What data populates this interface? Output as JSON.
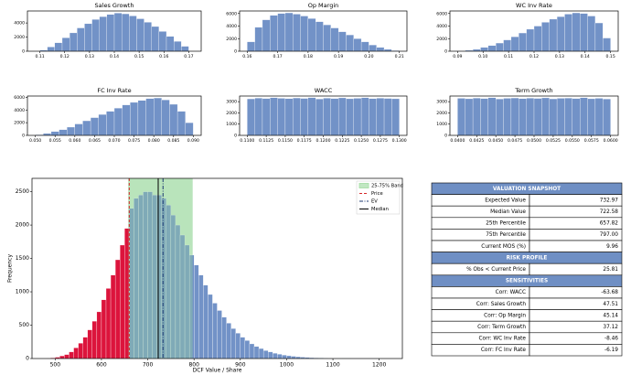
{
  "chart_data": [
    {
      "type": "histogram",
      "title": "Sales Growth",
      "color": "#7292c7",
      "bins": [
        0.11,
        0.113,
        0.116,
        0.119,
        0.122,
        0.125,
        0.128,
        0.131,
        0.134,
        0.137,
        0.14,
        0.143,
        0.146,
        0.149,
        0.152,
        0.155,
        0.158,
        0.161,
        0.164,
        0.167,
        0.17
      ],
      "values": [
        150,
        600,
        1200,
        1900,
        2600,
        3300,
        3900,
        4500,
        4900,
        5200,
        5400,
        5300,
        5000,
        4600,
        4100,
        3500,
        2800,
        2100,
        1400,
        700
      ],
      "xlim": [
        0.105,
        0.175
      ],
      "xticks": [
        0.11,
        0.12,
        0.13,
        0.14,
        0.15,
        0.16,
        0.17
      ],
      "ylim": [
        0,
        5700
      ],
      "yticks": [
        0,
        2000,
        4000
      ]
    },
    {
      "type": "histogram",
      "title": "Op Margin",
      "color": "#7292c7",
      "bins": [
        0.16,
        0.1625,
        0.165,
        0.1675,
        0.17,
        0.1725,
        0.175,
        0.1775,
        0.18,
        0.1825,
        0.185,
        0.1875,
        0.19,
        0.1925,
        0.195,
        0.1975,
        0.2,
        0.2025,
        0.205,
        0.2075,
        0.21
      ],
      "values": [
        1500,
        3800,
        5000,
        5700,
        6000,
        6100,
        5900,
        5600,
        5200,
        4700,
        4200,
        3700,
        3100,
        2600,
        2000,
        1500,
        1000,
        600,
        300,
        100
      ],
      "xlim": [
        0.1575,
        0.2125
      ],
      "xticks": [
        0.16,
        0.17,
        0.18,
        0.19,
        {
          "value": 0.2,
          "label": "0.20"
        },
        0.21
      ],
      "ylim": [
        0,
        6400
      ],
      "yticks": [
        0,
        2000,
        4000,
        6000
      ]
    },
    {
      "type": "histogram",
      "title": "WC Inv Rate",
      "color": "#7292c7",
      "bins": [
        0.09,
        0.093,
        0.096,
        0.099,
        0.102,
        0.105,
        0.108,
        0.111,
        0.114,
        0.117,
        0.12,
        0.123,
        0.126,
        0.129,
        0.132,
        0.135,
        0.138,
        0.141,
        0.144,
        0.147,
        0.15
      ],
      "values": [
        50,
        150,
        300,
        600,
        900,
        1300,
        1800,
        2300,
        2900,
        3500,
        4000,
        4600,
        5100,
        5500,
        5900,
        6100,
        6000,
        5600,
        4500,
        2100
      ],
      "xlim": [
        0.087,
        0.153
      ],
      "xticks": [
        0.09,
        {
          "value": 0.1,
          "label": "0.10"
        },
        0.11,
        0.12,
        0.13,
        0.14,
        0.15
      ],
      "ylim": [
        0,
        6400
      ],
      "yticks": [
        0,
        2000,
        4000,
        6000
      ]
    },
    {
      "type": "histogram",
      "title": "FC Inv Rate",
      "color": "#7292c7",
      "bins": [
        0.05,
        0.052,
        0.054,
        0.056,
        0.058,
        0.06,
        0.062,
        0.064,
        0.066,
        0.068,
        0.07,
        0.072,
        0.074,
        0.076,
        0.078,
        0.08,
        0.082,
        0.084,
        0.086,
        0.088,
        0.09
      ],
      "values": [
        100,
        300,
        600,
        900,
        1300,
        1800,
        2300,
        2800,
        3300,
        3800,
        4300,
        4800,
        5200,
        5500,
        5800,
        5900,
        5600,
        4900,
        3800,
        2000
      ],
      "xlim": [
        0.048,
        0.092
      ],
      "xticks": [
        {
          "value": 0.05,
          "label": "0.050"
        },
        0.055,
        {
          "value": 0.06,
          "label": "0.060"
        },
        0.065,
        {
          "value": 0.07,
          "label": "0.070"
        },
        0.075,
        {
          "value": 0.08,
          "label": "0.080"
        },
        0.085,
        {
          "value": 0.09,
          "label": "0.090"
        }
      ],
      "ylim": [
        0,
        6200
      ],
      "yticks": [
        0,
        2000,
        4000,
        6000
      ]
    },
    {
      "type": "histogram",
      "title": "WACC",
      "color": "#7292c7",
      "bins": [
        0.11,
        0.111,
        0.112,
        0.113,
        0.114,
        0.115,
        0.116,
        0.117,
        0.118,
        0.119,
        0.12,
        0.121,
        0.122,
        0.123,
        0.124,
        0.125,
        0.126,
        0.127,
        0.128,
        0.129,
        0.13
      ],
      "values": [
        3250,
        3320,
        3280,
        3350,
        3300,
        3270,
        3330,
        3290,
        3360,
        3240,
        3310,
        3280,
        3340,
        3260,
        3300,
        3350,
        3270,
        3310,
        3290,
        3260
      ],
      "xlim": [
        0.109,
        0.131
      ],
      "xticks": [
        {
          "value": 0.11,
          "label": "0.1100"
        },
        0.1125,
        {
          "value": 0.115,
          "label": "0.1150"
        },
        0.1175,
        {
          "value": 0.12,
          "label": "0.1200"
        },
        0.1225,
        {
          "value": 0.125,
          "label": "0.1250"
        },
        0.1275,
        {
          "value": 0.13,
          "label": "0.1300"
        }
      ],
      "ylim": [
        0,
        3500
      ],
      "yticks": [
        0,
        1000,
        2000,
        3000
      ]
    },
    {
      "type": "histogram",
      "title": "Term Growth",
      "color": "#7292c7",
      "bins": [
        0.04,
        0.041,
        0.042,
        0.043,
        0.044,
        0.045,
        0.046,
        0.047,
        0.048,
        0.049,
        0.05,
        0.051,
        0.052,
        0.053,
        0.054,
        0.055,
        0.056,
        0.057,
        0.058,
        0.059,
        0.06
      ],
      "values": [
        3300,
        3260,
        3320,
        3280,
        3350,
        3240,
        3300,
        3330,
        3270,
        3310,
        3290,
        3340,
        3250,
        3300,
        3320,
        3280,
        3350,
        3260,
        3300,
        3240
      ],
      "xlim": [
        0.039,
        0.061
      ],
      "xticks": [
        {
          "value": 0.04,
          "label": "0.0400"
        },
        0.0425,
        {
          "value": 0.045,
          "label": "0.0450"
        },
        0.0475,
        {
          "value": 0.05,
          "label": "0.0500"
        },
        0.0525,
        {
          "value": 0.055,
          "label": "0.0550"
        },
        0.0575,
        {
          "value": 0.06,
          "label": "0.0600"
        }
      ],
      "ylim": [
        0,
        3500
      ],
      "yticks": [
        0,
        1000,
        2000,
        3000
      ]
    },
    {
      "type": "dcf_histogram",
      "x_label": "DCF Value / Share",
      "y_label": "Frequency",
      "color": "#7292c7",
      "below_price_color": "#dc143c",
      "bins": [
        480,
        490,
        500,
        510,
        520,
        530,
        540,
        550,
        560,
        570,
        580,
        590,
        600,
        610,
        620,
        630,
        640,
        650,
        660,
        670,
        680,
        690,
        700,
        710,
        720,
        730,
        740,
        750,
        760,
        770,
        780,
        790,
        800,
        810,
        820,
        830,
        840,
        850,
        860,
        870,
        880,
        890,
        900,
        910,
        920,
        930,
        940,
        950,
        960,
        970,
        980,
        990,
        1000,
        1010,
        1020,
        1030,
        1040,
        1050,
        1060,
        1070,
        1080,
        1090,
        1100,
        1110,
        1120,
        1130,
        1140,
        1150,
        1160,
        1170,
        1180,
        1190,
        1200
      ],
      "values": [
        5,
        10,
        20,
        40,
        60,
        100,
        160,
        230,
        320,
        430,
        560,
        700,
        880,
        1050,
        1250,
        1480,
        1700,
        1950,
        2250,
        2400,
        2450,
        2500,
        2500,
        2450,
        2450,
        2400,
        2300,
        2150,
        2000,
        1850,
        1700,
        1550,
        1400,
        1250,
        1100,
        960,
        830,
        720,
        620,
        530,
        450,
        380,
        320,
        270,
        220,
        180,
        150,
        120,
        100,
        80,
        65,
        52,
        42,
        34,
        27,
        21,
        17,
        13,
        10,
        8,
        6,
        5,
        4,
        3,
        2,
        2,
        1,
        1,
        1,
        1,
        1,
        1
      ],
      "xlim": [
        450,
        1250
      ],
      "xticks": [
        500,
        600,
        700,
        800,
        900,
        1000,
        1100,
        1200
      ],
      "ylim": [
        0,
        2700
      ],
      "yticks": [
        0,
        500,
        1000,
        1500,
        2000,
        2500
      ],
      "band": {
        "name": "25-75% Band",
        "range": [
          657.82,
          797.0
        ],
        "color": "#98d89a"
      },
      "price": {
        "name": "Price",
        "value": 660,
        "color": "#d62728"
      },
      "ev": {
        "name": "EV",
        "value": 732.97,
        "color": "#1f3b73"
      },
      "median": {
        "name": "Median",
        "value": 722.58,
        "color": "#000000"
      },
      "legend": "upper right"
    }
  ],
  "table": {
    "sections": [
      {
        "title": "VALUATION SNAPSHOT",
        "rows": [
          [
            "Expected Value",
            "732.97"
          ],
          [
            "Median Value",
            "722.58"
          ],
          [
            "25th Percentile",
            "657.82"
          ],
          [
            "75th Percentile",
            "797.00"
          ],
          [
            "Current MOS (%)",
            "9.96"
          ]
        ]
      },
      {
        "title": "RISK PROFILE",
        "rows": [
          [
            "% Obs < Current Price",
            "25.81"
          ]
        ]
      },
      {
        "title": "SENSITIVITIES",
        "rows": [
          [
            "Corr: WACC",
            "-63.68"
          ],
          [
            "Corr: Sales Growth",
            "47.51"
          ],
          [
            "Corr: Op Margin",
            "45.14"
          ],
          [
            "Corr: Term Growth",
            "37.12"
          ],
          [
            "Corr: WC Inv Rate",
            "-8.46"
          ],
          [
            "Corr: FC Inv Rate",
            "-6.19"
          ]
        ]
      }
    ]
  }
}
